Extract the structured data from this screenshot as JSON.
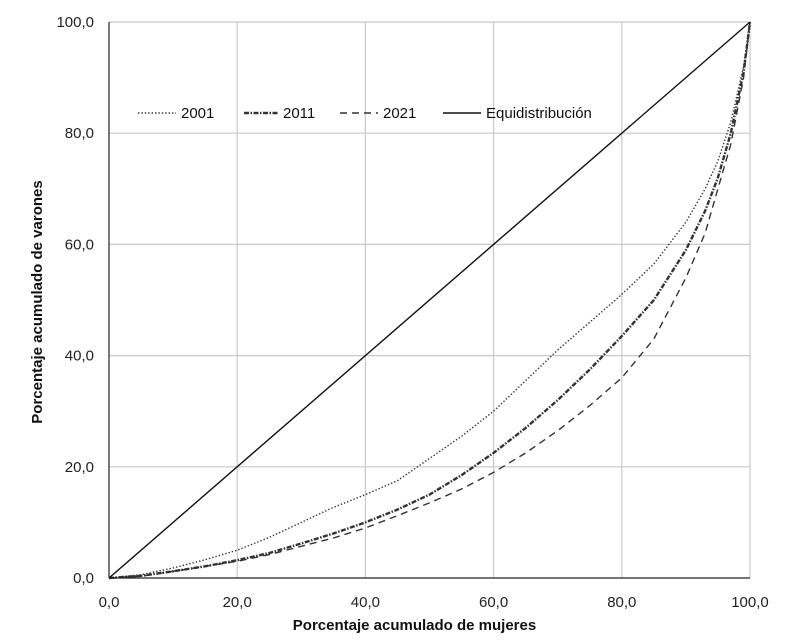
{
  "chart_data": {
    "type": "line",
    "title": "",
    "xlabel": "Porcentaje acumulado de mujeres",
    "ylabel": "Porcentaje acumulado de varones",
    "xlim": [
      0,
      100
    ],
    "ylim": [
      0,
      100
    ],
    "x_ticks": [
      "0,0",
      "20,0",
      "40,0",
      "60,0",
      "80,0",
      "100,0"
    ],
    "y_ticks": [
      "0,0",
      "20,0",
      "40,0",
      "60,0",
      "80,0",
      "100,0"
    ],
    "grid": "on",
    "legend_position": "top-left",
    "series": [
      {
        "name": "2001",
        "style": "dotted",
        "x": [
          0,
          5,
          10,
          15,
          20,
          25,
          30,
          35,
          40,
          45,
          50,
          55,
          60,
          65,
          70,
          75,
          80,
          85,
          90,
          93,
          95,
          97,
          99,
          100
        ],
        "y": [
          0,
          0.6,
          1.8,
          3.3,
          5,
          7.3,
          10,
          12.7,
          15,
          17.5,
          21.5,
          25.5,
          30,
          35.5,
          41,
          46,
          51,
          56.5,
          64,
          70,
          75,
          82,
          92,
          100
        ]
      },
      {
        "name": "2011",
        "style": "dash-dot",
        "x": [
          0,
          5,
          10,
          15,
          20,
          25,
          30,
          35,
          40,
          45,
          50,
          55,
          60,
          65,
          70,
          75,
          80,
          85,
          90,
          93,
          95,
          97,
          99,
          100
        ],
        "y": [
          0,
          0.4,
          1.2,
          2.1,
          3.2,
          4.5,
          6.2,
          8,
          10,
          12.3,
          15,
          18.5,
          22.5,
          27,
          32,
          37.5,
          43.5,
          50,
          59,
          66,
          72,
          80,
          91,
          100
        ]
      },
      {
        "name": "2021",
        "style": "dashed",
        "x": [
          0,
          5,
          10,
          15,
          20,
          25,
          30,
          35,
          40,
          45,
          50,
          55,
          60,
          65,
          70,
          75,
          80,
          85,
          90,
          93,
          95,
          97,
          99,
          100
        ],
        "y": [
          0,
          0.3,
          1.2,
          2.1,
          3,
          4.2,
          5.7,
          7.2,
          9,
          11.2,
          13.5,
          16,
          19,
          22.5,
          26.5,
          31,
          36,
          43,
          54,
          62,
          70,
          78,
          90,
          100
        ]
      },
      {
        "name": "Equidistribución",
        "style": "solid",
        "x": [
          0,
          100
        ],
        "y": [
          0,
          100
        ]
      }
    ]
  }
}
